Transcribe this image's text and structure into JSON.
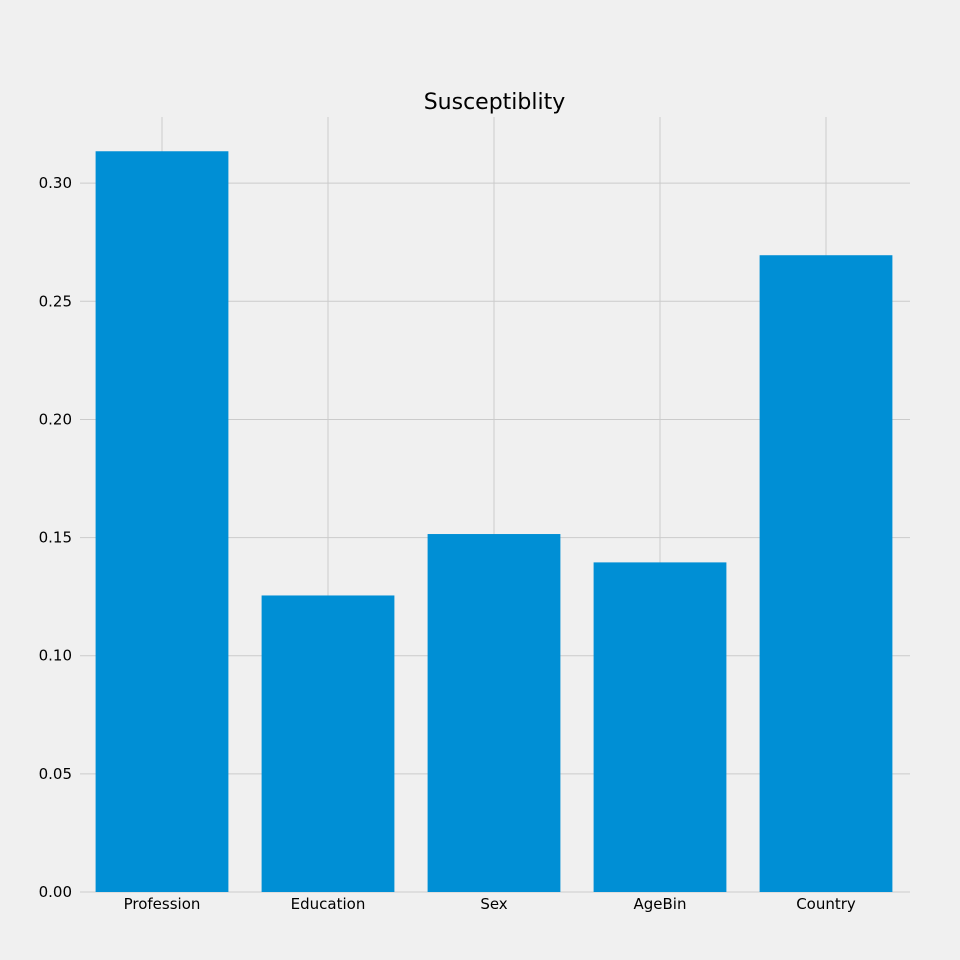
{
  "chart_data": {
    "type": "bar",
    "title": "Susceptiblity",
    "xlabel": "",
    "ylabel": "",
    "categories": [
      "Profession",
      "Education",
      "Sex",
      "AgeBin",
      "Country"
    ],
    "values": [
      0.3135,
      0.1255,
      0.1515,
      0.1395,
      0.2695
    ],
    "ylim": [
      0,
      0.328
    ],
    "yticks": [
      "0.00",
      "0.05",
      "0.10",
      "0.15",
      "0.20",
      "0.25",
      "0.30"
    ],
    "grid": true,
    "legend": "none",
    "colors": {
      "bar": "#008fd5",
      "background": "#f0f0f0",
      "grid": "#cbcbcb"
    }
  }
}
